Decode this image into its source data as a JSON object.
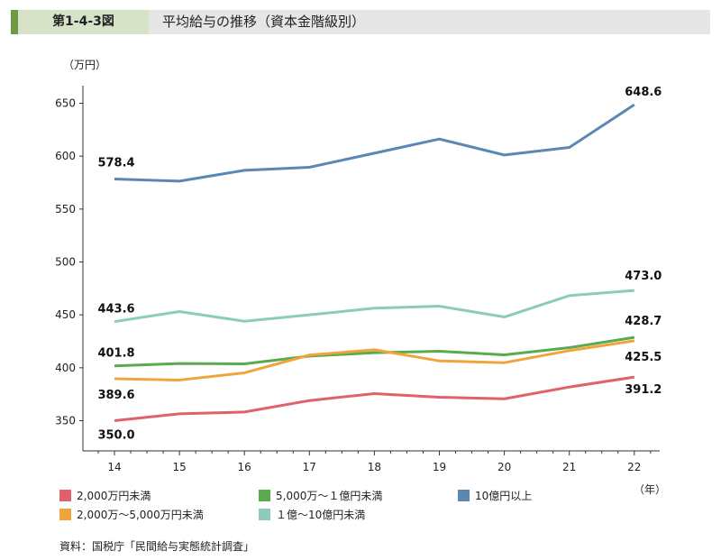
{
  "header": {
    "figure_number": "第1-4-3図",
    "title": "平均給与の推移（資本金階級別）"
  },
  "source": "資料：国税庁「民間給与実態統計調査」",
  "chart_data": {
    "type": "line",
    "title": "平均給与の推移（資本金階級別）",
    "ylabel": "（万円）",
    "xlabel": "（年）",
    "ylim": [
      320,
      670
    ],
    "yticks": [
      350,
      400,
      450,
      500,
      550,
      600,
      650
    ],
    "x": [
      "14",
      "15",
      "16",
      "17",
      "18",
      "19",
      "20",
      "21",
      "22"
    ],
    "grid": false,
    "legend_placement": "bottom",
    "series": [
      {
        "name": "10億円以上",
        "color": "#5b87b3",
        "values": [
          578.4,
          576.4,
          586.6,
          589.5,
          602.8,
          616.2,
          601.1,
          608.2,
          648.6
        ],
        "labels": {
          "first": "578.4",
          "last": "648.6"
        }
      },
      {
        "name": "１億〜10億円未満",
        "color": "#8ccbbd",
        "values": [
          443.6,
          453.1,
          444.0,
          450.0,
          456.3,
          458.2,
          448.0,
          468.2,
          473.0
        ],
        "labels": {
          "first": "443.6",
          "last": "473.0"
        }
      },
      {
        "name": "5,000万〜１億円未満",
        "color": "#5aaa4e",
        "values": [
          401.8,
          404.0,
          403.7,
          411.0,
          414.2,
          415.6,
          412.2,
          419.0,
          428.7
        ],
        "labels": {
          "first": "401.8",
          "last": "428.7"
        }
      },
      {
        "name": "2,000万〜5,000万円未満",
        "color": "#f0a43c",
        "values": [
          389.6,
          388.4,
          395.2,
          412.0,
          417.0,
          406.5,
          404.8,
          416.2,
          425.5
        ],
        "labels": {
          "first": "389.6",
          "last": "425.5"
        }
      },
      {
        "name": "2,000万円未満",
        "color": "#e0616b",
        "values": [
          350.0,
          356.5,
          358.2,
          369.0,
          375.6,
          372.2,
          370.7,
          381.8,
          391.2
        ],
        "labels": {
          "first": "350.0",
          "last": "391.2"
        }
      }
    ],
    "legend_order": [
      4,
      2,
      0,
      3,
      1
    ]
  }
}
